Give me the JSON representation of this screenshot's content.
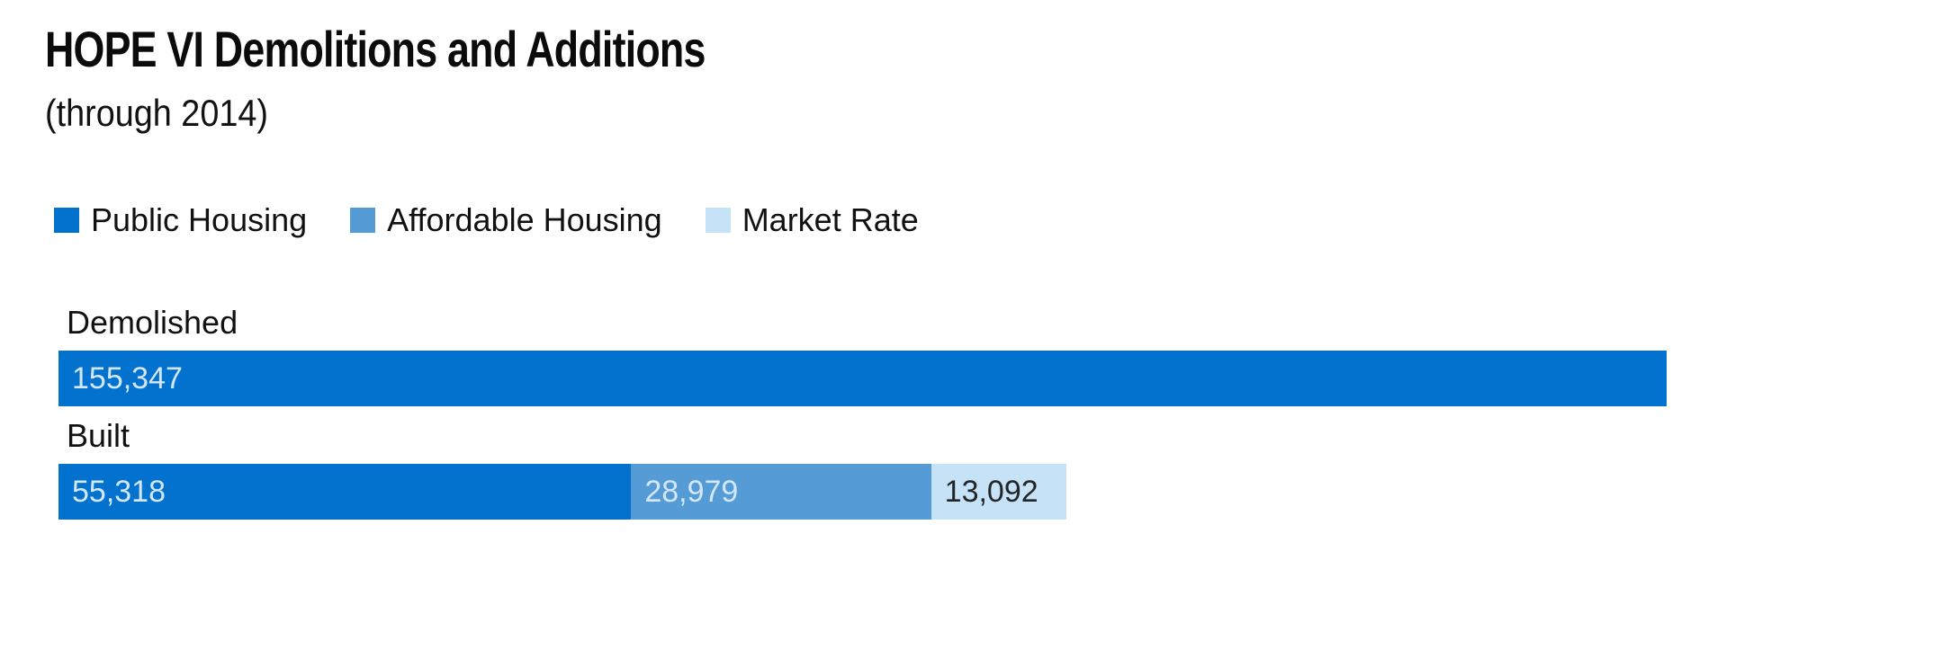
{
  "header": {
    "title": "HOPE VI Demolitions and Additions",
    "subtitle": "(through 2014)"
  },
  "colors": {
    "public_housing_blue": "#0272ce",
    "affordable_housing_blue": "#559cd6",
    "market_rate_blue": "#c5e2f7",
    "bar_label_light": "#d3e7f8",
    "bar_label_dark": "#232527",
    "text": "#111111"
  },
  "legend": [
    {
      "label": "Public Housing",
      "color": "#0272ce"
    },
    {
      "label": "Affordable Housing",
      "color": "#559cd6"
    },
    {
      "label": "Market Rate",
      "color": "#c5e2f7"
    }
  ],
  "chart_data": {
    "type": "bar",
    "orientation": "horizontal",
    "stacked": true,
    "title": "HOPE VI Demolitions and Additions",
    "subtitle": "(through 2014)",
    "categories": [
      "Demolished",
      "Built"
    ],
    "series": [
      {
        "name": "Public Housing",
        "color": "#0272ce",
        "values": [
          155347,
          55318
        ],
        "labels": [
          "155,347",
          "55,318"
        ],
        "label_style": "light"
      },
      {
        "name": "Affordable Housing",
        "color": "#559cd6",
        "values": [
          0,
          28979
        ],
        "labels": [
          "",
          "28,979"
        ],
        "label_style": "light"
      },
      {
        "name": "Market Rate",
        "color": "#c5e2f7",
        "values": [
          0,
          13092
        ],
        "labels": [
          "",
          "13,092"
        ],
        "label_style": "dark"
      }
    ],
    "xlim": [
      0,
      155347
    ],
    "legend_position": "top",
    "grid": false,
    "axis_labels_shown": false
  }
}
